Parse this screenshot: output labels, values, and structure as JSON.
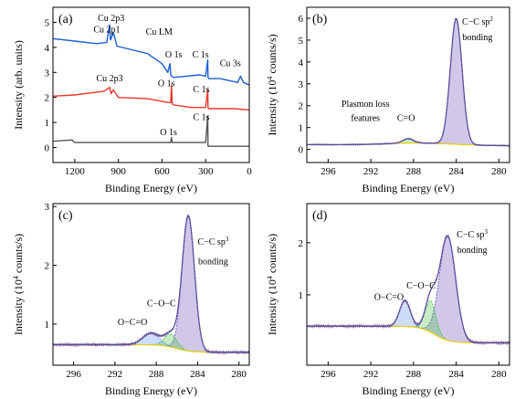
{
  "colors": {
    "blue": "#1a5fd0",
    "red": "#e8382e",
    "gray": "#555555",
    "baseline": "#e8d21a",
    "envelope": "#9a3aa8",
    "sp_fill": "#5a3bb0",
    "c_o_fill": "#33c033",
    "o_c_o_fill": "#4a86e8",
    "raw_line": "#3a3a9a",
    "bg_trace": "#8a6a9a"
  },
  "chart_data": [
    {
      "id": "a",
      "type": "line",
      "panel_label": "(a)",
      "xlabel": "Binding Energy (eV)",
      "ylabel": "Intensity (arb. units)",
      "xlim": [
        1350,
        0
      ],
      "ylim": [
        -0.6,
        5.6
      ],
      "xticks": [
        1200,
        900,
        600,
        300,
        0
      ],
      "yticks": [
        0,
        1,
        2,
        3,
        4,
        5
      ],
      "series": [
        {
          "color": "blue",
          "x": [
            1350,
            1200,
            1050,
            980,
            960,
            955,
            950,
            935,
            910,
            700,
            600,
            560,
            545,
            540,
            535,
            520,
            340,
            300,
            286,
            284,
            280,
            200,
            120,
            80,
            60,
            40,
            0
          ],
          "y": [
            4.35,
            4.25,
            4.15,
            4.2,
            4.9,
            4.3,
            4.35,
            4.6,
            4.05,
            3.75,
            3.35,
            3.0,
            3.35,
            2.9,
            2.85,
            2.8,
            2.9,
            2.85,
            3.5,
            2.8,
            2.75,
            2.75,
            2.65,
            2.6,
            2.85,
            2.6,
            2.5
          ]
        },
        {
          "color": "red",
          "x": [
            1350,
            1200,
            1000,
            960,
            950,
            935,
            900,
            700,
            560,
            540,
            535,
            530,
            520,
            400,
            300,
            286,
            284,
            280,
            200,
            100,
            0
          ],
          "y": [
            2.05,
            2.1,
            2.25,
            2.4,
            2.15,
            2.3,
            2.0,
            1.95,
            1.8,
            1.8,
            2.5,
            1.75,
            1.7,
            1.6,
            1.6,
            2.3,
            1.6,
            1.55,
            1.55,
            1.55,
            1.5
          ]
        },
        {
          "color": "gray",
          "x": [
            1350,
            1220,
            1200,
            1100,
            900,
            700,
            550,
            540,
            535,
            530,
            520,
            400,
            300,
            286,
            284,
            280,
            200,
            100,
            0
          ],
          "y": [
            0.25,
            0.3,
            0.2,
            0.2,
            0.2,
            0.2,
            0.2,
            0.2,
            0.4,
            0.2,
            0.2,
            0.2,
            0.2,
            1.25,
            0.05,
            0.05,
            0.05,
            0.05,
            0.05
          ]
        }
      ],
      "annotations": [
        {
          "text": "Cu 2p3",
          "x": 950,
          "y": 5.05
        },
        {
          "text": "Cu 2p1",
          "x": 980,
          "y": 4.6
        },
        {
          "text": "Cu LM",
          "x": 620,
          "y": 4.5
        },
        {
          "text": "O 1s",
          "x": 520,
          "y": 3.6
        },
        {
          "text": "C 1s",
          "x": 335,
          "y": 3.6
        },
        {
          "text": "Cu 3s",
          "x": 130,
          "y": 3.25
        },
        {
          "text": "Cu 2p3",
          "x": 960,
          "y": 2.65
        },
        {
          "text": "O 1s",
          "x": 570,
          "y": 2.45
        },
        {
          "text": "C 1s",
          "x": 330,
          "y": 2.2
        },
        {
          "text": "C 1s",
          "x": 330,
          "y": 1.1
        },
        {
          "text": "O 1s",
          "x": 555,
          "y": 0.5
        }
      ]
    },
    {
      "id": "b",
      "type": "line",
      "panel_label": "(b)",
      "xlabel": "Binding Energy (eV)",
      "ylabel": "Intensity (10",
      "ylabel_sup": "4",
      "ylabel_end": " counts/s)",
      "xlim": [
        298,
        279
      ],
      "ylim": [
        -0.6,
        6.5
      ],
      "xticks": [
        296,
        292,
        288,
        284,
        280
      ],
      "yticks": [
        0,
        1,
        2,
        3,
        4,
        5,
        6
      ],
      "peaks": [
        {
          "name": "C−C sp2",
          "center": 284.0,
          "height": 5.75,
          "width": 0.55,
          "color": "sp_fill"
        },
        {
          "name": "C=O",
          "center": 288.5,
          "height": 0.2,
          "width": 0.5,
          "color": "c_o_fill"
        }
      ],
      "background": {
        "level": 0.22,
        "bump_center": 287.5,
        "bump_height": 0.1,
        "bump_width": 3.0
      },
      "annotations": [
        {
          "text": "C−C sp",
          "sup": "2",
          "x": 282.0,
          "y": 5.7
        },
        {
          "text": "bonding",
          "x": 282.0,
          "y": 5.0
        },
        {
          "text": "Plasmon loss",
          "x": 292.5,
          "y": 1.95
        },
        {
          "text": "features",
          "x": 292.5,
          "y": 1.3
        },
        {
          "text": "C=O",
          "x": 288.7,
          "y": 1.3
        }
      ]
    },
    {
      "id": "c",
      "type": "line",
      "panel_label": "(c)",
      "xlabel": "Binding Energy (eV)",
      "ylabel": "Intensity (10",
      "ylabel_sup": "4",
      "ylabel_end": " counts/s)",
      "xlim": [
        298,
        279
      ],
      "ylim": [
        0.3,
        3.05
      ],
      "xticks": [
        296,
        292,
        288,
        284,
        280
      ],
      "yticks": [
        1,
        2,
        3
      ],
      "peaks": [
        {
          "name": "C−C sp3",
          "center": 284.9,
          "height": 2.3,
          "width": 0.6,
          "color": "sp_fill"
        },
        {
          "name": "C−O−C",
          "center": 286.6,
          "height": 0.22,
          "width": 0.6,
          "color": "c_o_fill"
        },
        {
          "name": "O−C=O",
          "center": 288.5,
          "height": 0.2,
          "width": 0.8,
          "color": "o_c_o_fill"
        }
      ],
      "background": {
        "left": 0.65,
        "right": 0.52,
        "step_center": 286.0
      },
      "annotations": [
        {
          "text": "C−C sp",
          "sup": "3",
          "x": 282.5,
          "y": 2.35
        },
        {
          "text": "bonding",
          "x": 282.5,
          "y": 2.02
        },
        {
          "text": "C−O−C",
          "x": 287.5,
          "y": 1.3
        },
        {
          "text": "O−C=O",
          "x": 290.3,
          "y": 0.98
        }
      ]
    },
    {
      "id": "d",
      "type": "line",
      "panel_label": "(d)",
      "xlabel": "Binding Energy (eV)",
      "ylabel": "Intensity (10",
      "ylabel_sup": "4",
      "ylabel_end": " counts/s)",
      "xlim": [
        298,
        279
      ],
      "ylim": [
        -0.35,
        2.75
      ],
      "xticks": [
        296,
        292,
        288,
        284,
        280
      ],
      "yticks": [
        1,
        2
      ],
      "peaks": [
        {
          "name": "C−C sp3",
          "center": 284.8,
          "height": 2.0,
          "width": 0.75,
          "color": "sp_fill"
        },
        {
          "name": "C−O−C",
          "center": 286.4,
          "height": 0.6,
          "width": 0.5,
          "color": "c_o_fill"
        },
        {
          "name": "O−C=O",
          "center": 288.8,
          "height": 0.5,
          "width": 0.5,
          "color": "o_c_o_fill"
        }
      ],
      "background": {
        "left": 0.4,
        "right": 0.08,
        "step_center": 286.0
      },
      "annotations": [
        {
          "text": "C−C sp",
          "sup": "3",
          "x": 282.5,
          "y": 2.1
        },
        {
          "text": "bonding",
          "x": 282.5,
          "y": 1.8
        },
        {
          "text": "C−O−C",
          "x": 287.3,
          "y": 1.12
        },
        {
          "text": "O−C=O",
          "x": 290.3,
          "y": 0.9
        }
      ]
    }
  ]
}
